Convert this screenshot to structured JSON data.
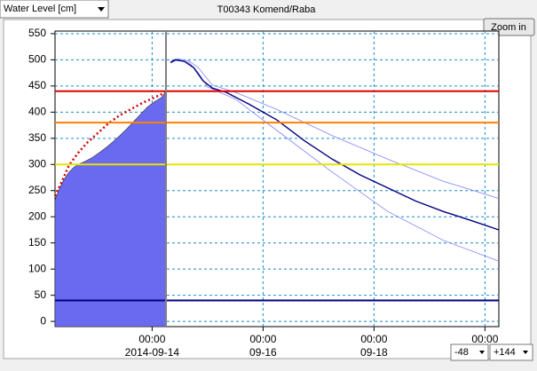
{
  "ui": {
    "measure": "Water Level [cm]",
    "station": "T00343 Komend/Raba",
    "zoom": "Zoom in",
    "back": "-48",
    "ahead": "+144"
  },
  "chart_data": {
    "type": "hydrograph",
    "xlim": [
      -48,
      144
    ],
    "ylim": [
      -10,
      555
    ],
    "xticks": [
      {
        "value": -6,
        "label": "00:00",
        "sublabel": "2014-09-14"
      },
      {
        "value": 42,
        "label": "00:00",
        "sublabel": "09-16"
      },
      {
        "value": 90,
        "label": "00:00",
        "sublabel": "09-18"
      },
      {
        "value": 138,
        "label": "00:00"
      }
    ],
    "yticks": [
      0,
      50,
      100,
      150,
      200,
      250,
      300,
      350,
      400,
      450,
      500,
      550
    ],
    "grid": true,
    "now": 0,
    "now_color": "#808080",
    "thresholds": [
      {
        "value": 440,
        "color": "#e00000"
      },
      {
        "value": 380,
        "color": "#ff8000"
      },
      {
        "value": 300,
        "color": "#e6e600"
      },
      {
        "value": 40,
        "color": "#000080"
      }
    ],
    "series": [
      {
        "style": "area",
        "color": "#6a6af0",
        "x": [
          -48,
          -46,
          -44,
          -42,
          -40,
          -38,
          -35,
          -32,
          -29,
          -26,
          -23,
          -20,
          -17,
          -14,
          -11,
          -8,
          -5,
          -2,
          0
        ],
        "values": [
          232,
          255,
          272,
          285,
          294,
          300,
          306,
          313,
          322,
          332,
          343,
          355,
          368,
          382,
          396,
          410,
          420,
          428,
          440
        ]
      },
      {
        "style": "dotted",
        "color": "#d00000",
        "x": [
          -48,
          -45,
          -42,
          -38,
          -34,
          -30,
          -25,
          -20,
          -15,
          -10,
          -5,
          -2,
          0
        ],
        "values": [
          240,
          268,
          298,
          322,
          342,
          358,
          378,
          394,
          406,
          418,
          428,
          434,
          440
        ]
      },
      {
        "style": "thin",
        "color": "#8080ff",
        "x": [
          2,
          5,
          10,
          14,
          20,
          30,
          48,
          72,
          96,
          120,
          144
        ],
        "values": [
          497,
          502,
          498,
          485,
          452,
          438,
          405,
          355,
          310,
          268,
          235
        ]
      },
      {
        "style": "thin",
        "color": "#8080ff",
        "x": [
          2,
          5,
          10,
          14,
          18,
          30,
          48,
          72,
          96,
          120,
          144
        ],
        "values": [
          494,
          500,
          495,
          475,
          448,
          425,
          365,
          285,
          210,
          155,
          115
        ]
      },
      {
        "style": "solid",
        "color": "#000080",
        "x": [
          2,
          4,
          8,
          12,
          16,
          20,
          26,
          36,
          48,
          60,
          72,
          84,
          96,
          108,
          120,
          132,
          144
        ],
        "values": [
          495,
          500,
          497,
          485,
          460,
          446,
          438,
          415,
          385,
          345,
          310,
          280,
          255,
          230,
          210,
          193,
          175
        ]
      }
    ]
  }
}
